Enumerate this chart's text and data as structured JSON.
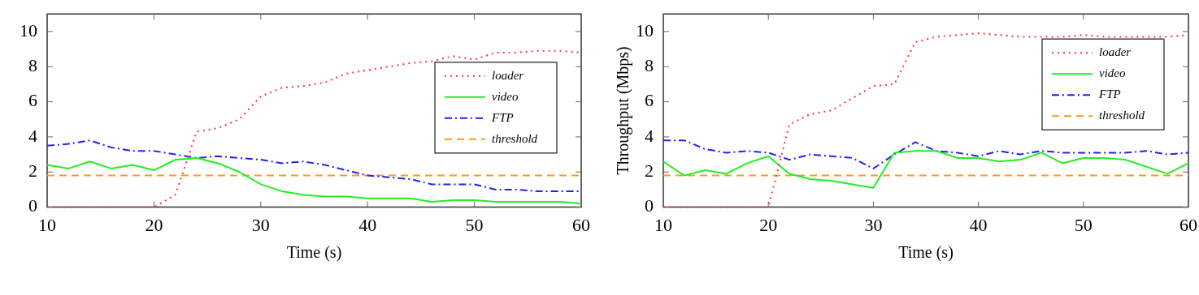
{
  "chart_data": [
    {
      "type": "line",
      "xlabel": "Time (s)",
      "x": [
        10,
        12,
        14,
        16,
        18,
        20,
        22,
        24,
        26,
        28,
        30,
        32,
        34,
        36,
        38,
        40,
        42,
        44,
        46,
        48,
        50,
        52,
        54,
        56,
        58,
        60
      ],
      "xlim": [
        10,
        60
      ],
      "xticks": [
        10,
        20,
        30,
        40,
        50,
        60
      ],
      "ylim": [
        0,
        11
      ],
      "yticks": [
        0,
        2,
        4,
        6,
        8,
        10
      ],
      "grid": false,
      "legend": "right",
      "marker": "none",
      "series": [
        {
          "name": "loader",
          "color": "#ff3333",
          "line_style": "dotted",
          "values": [
            0,
            0,
            0,
            0,
            0,
            0,
            0.7,
            4.3,
            4.5,
            5.0,
            6.3,
            6.8,
            6.9,
            7.1,
            7.6,
            7.8,
            8.0,
            8.2,
            8.3,
            8.6,
            8.4,
            8.8,
            8.8,
            8.9,
            8.9,
            8.8
          ]
        },
        {
          "name": "video",
          "color": "#22ee22",
          "line_style": "solid",
          "values": [
            2.4,
            2.2,
            2.6,
            2.2,
            2.4,
            2.1,
            2.7,
            2.8,
            2.5,
            2.0,
            1.3,
            0.9,
            0.7,
            0.6,
            0.6,
            0.5,
            0.5,
            0.5,
            0.3,
            0.4,
            0.4,
            0.3,
            0.3,
            0.3,
            0.3,
            0.2
          ]
        },
        {
          "name": "FTP",
          "color": "#2222ee",
          "line_style": "dashdot",
          "values": [
            3.5,
            3.6,
            3.8,
            3.4,
            3.2,
            3.2,
            3.0,
            2.8,
            2.9,
            2.8,
            2.7,
            2.5,
            2.6,
            2.4,
            2.1,
            1.8,
            1.7,
            1.6,
            1.3,
            1.3,
            1.3,
            1.0,
            1.0,
            0.9,
            0.9,
            0.9
          ]
        },
        {
          "name": "threshold",
          "color": "#ff9922",
          "line_style": "dashed",
          "values": [
            1.8,
            1.8,
            1.8,
            1.8,
            1.8,
            1.8,
            1.8,
            1.8,
            1.8,
            1.8,
            1.8,
            1.8,
            1.8,
            1.8,
            1.8,
            1.8,
            1.8,
            1.8,
            1.8,
            1.8,
            1.8,
            1.8,
            1.8,
            1.8,
            1.8,
            1.8
          ]
        }
      ]
    },
    {
      "type": "line",
      "xlabel": "Time (s)",
      "ylabel": "Throughput (Mbps)",
      "x": [
        10,
        12,
        14,
        16,
        18,
        20,
        22,
        24,
        26,
        28,
        30,
        32,
        34,
        36,
        38,
        40,
        42,
        44,
        46,
        48,
        50,
        52,
        54,
        56,
        58,
        60
      ],
      "xlim": [
        10,
        60
      ],
      "xticks": [
        10,
        20,
        30,
        40,
        50,
        60
      ],
      "ylim": [
        0,
        11
      ],
      "yticks": [
        0,
        2,
        4,
        6,
        8,
        10
      ],
      "grid": false,
      "legend": "top right",
      "marker": "none",
      "series": [
        {
          "name": "loader",
          "color": "#ff3333",
          "line_style": "dotted",
          "values": [
            0,
            0,
            0,
            0,
            0,
            0,
            4.7,
            5.3,
            5.5,
            6.2,
            6.9,
            7.0,
            9.4,
            9.7,
            9.8,
            9.9,
            9.8,
            9.7,
            9.7,
            9.7,
            9.8,
            9.7,
            9.7,
            9.7,
            9.7,
            9.8
          ]
        },
        {
          "name": "video",
          "color": "#22ee22",
          "line_style": "solid",
          "values": [
            2.6,
            1.8,
            2.1,
            1.9,
            2.5,
            2.9,
            1.9,
            1.6,
            1.5,
            1.3,
            1.1,
            3.1,
            3.2,
            3.2,
            2.8,
            2.8,
            2.6,
            2.7,
            3.1,
            2.5,
            2.8,
            2.8,
            2.7,
            2.3,
            1.9,
            2.5
          ]
        },
        {
          "name": "FTP",
          "color": "#2222ee",
          "line_style": "dashdot",
          "values": [
            3.8,
            3.8,
            3.3,
            3.1,
            3.2,
            3.1,
            2.7,
            3.0,
            2.9,
            2.8,
            2.2,
            3.0,
            3.7,
            3.2,
            3.1,
            2.9,
            3.2,
            3.0,
            3.2,
            3.1,
            3.1,
            3.1,
            3.1,
            3.2,
            3.0,
            3.1
          ]
        },
        {
          "name": "threshold",
          "color": "#ff9922",
          "line_style": "dashed",
          "values": [
            1.8,
            1.8,
            1.8,
            1.8,
            1.8,
            1.8,
            1.8,
            1.8,
            1.8,
            1.8,
            1.8,
            1.8,
            1.8,
            1.8,
            1.8,
            1.8,
            1.8,
            1.8,
            1.8,
            1.8,
            1.8,
            1.8,
            1.8,
            1.8,
            1.8,
            1.8
          ]
        }
      ]
    }
  ]
}
